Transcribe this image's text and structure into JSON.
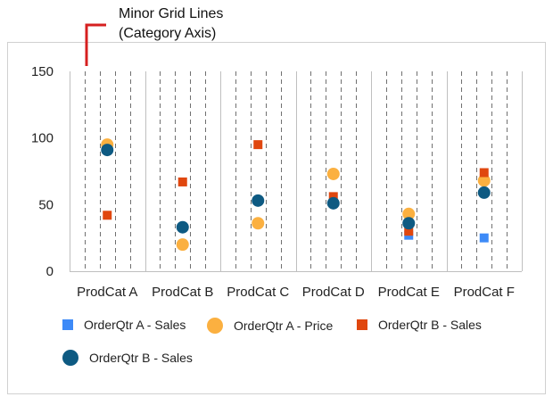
{
  "annotation": {
    "line1": "Minor Grid Lines",
    "line2": "(Category Axis)",
    "bracket_color": "#d62020"
  },
  "chart_data": {
    "type": "scatter",
    "title": "",
    "xlabel": "",
    "ylabel": "",
    "categories": [
      "ProdCat A",
      "ProdCat B",
      "ProdCat C",
      "ProdCat D",
      "ProdCat E",
      "ProdCat F"
    ],
    "ylim": [
      0,
      150
    ],
    "yticks": [
      0,
      50,
      100,
      150
    ],
    "grid": "vertical minor gridlines (dashed) on category axis",
    "legend_position": "bottom",
    "series": [
      {
        "name": "OrderQtr A - Sales",
        "marker": "square",
        "size": "small",
        "color": "#3d8af7",
        "values": [
          null,
          null,
          null,
          null,
          27,
          25
        ]
      },
      {
        "name": "OrderQtr A - Price",
        "marker": "circle",
        "size": "large",
        "color": "#fbb040",
        "values": [
          95,
          20,
          36,
          73,
          43,
          68
        ]
      },
      {
        "name": "OrderQtr B - Sales",
        "marker": "square",
        "size": "small",
        "color": "#e0470f",
        "values": [
          42,
          67,
          95,
          56,
          30,
          74
        ]
      },
      {
        "name": "OrderQtr B - Sales",
        "marker": "circle",
        "size": "large",
        "color": "#0e5a82",
        "values": [
          91,
          33,
          53,
          51,
          36,
          59
        ]
      }
    ]
  }
}
